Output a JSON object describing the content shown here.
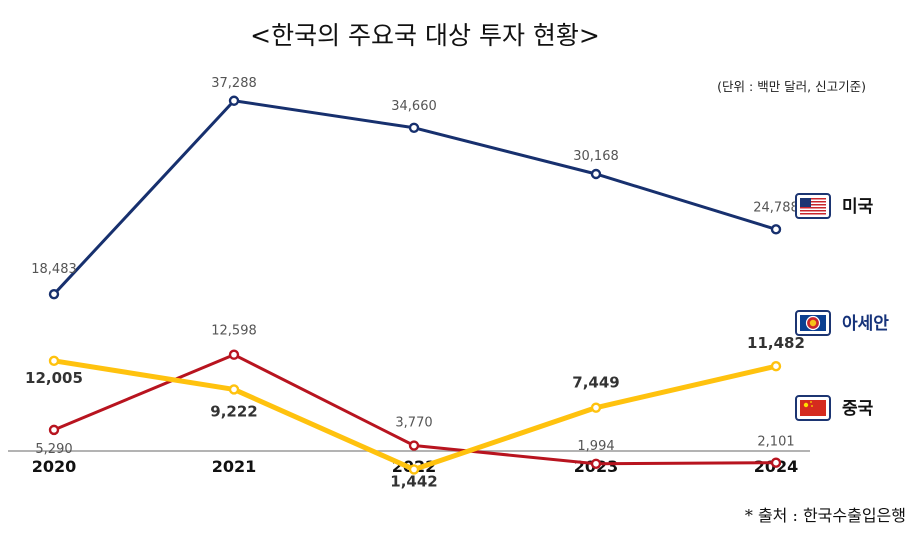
{
  "chart_data": {
    "type": "line",
    "title": "<한국의 주요국 대상 투자 현황>",
    "unit_note": "(단위 : 백만 달러, 신고기준)",
    "source": "*  출처 :  한국수출입은행",
    "x": [
      "2020",
      "2021",
      "2022",
      "2023",
      "2024"
    ],
    "ylim": [
      0,
      40000
    ],
    "series": [
      {
        "name": "미국",
        "color": "#17306e",
        "values": [
          18483,
          37288,
          34660,
          30168,
          24788
        ],
        "labels": [
          "18,483",
          "37,288",
          "34,660",
          "30,168",
          "24,788"
        ],
        "label_style": "thin",
        "flag": "us-flag-icon"
      },
      {
        "name": "아세안",
        "color": "#ffc20e",
        "values": [
          12005,
          9222,
          1442,
          7449,
          11482
        ],
        "labels": [
          "12,005",
          "9,222",
          "1,442",
          "7,449",
          "11,482"
        ],
        "label_style": "bold",
        "flag": "asean-flag-icon"
      },
      {
        "name": "중국",
        "color": "#b8141f",
        "values": [
          5290,
          12598,
          3770,
          1994,
          2101
        ],
        "labels": [
          "5,290",
          "12,598",
          "3,770",
          "1,994",
          "2,101"
        ],
        "label_style": "thin",
        "flag": "china-flag-icon"
      }
    ]
  }
}
